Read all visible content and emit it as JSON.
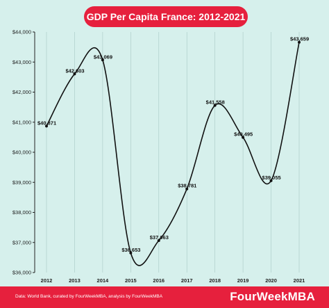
{
  "colors": {
    "brand": "#e6203d",
    "background": "#d6f0ec",
    "line": "#111111"
  },
  "footer": {
    "source": "Data: World Bank, curated by FourWeekMBA, analysis by FourWeekMBA",
    "brand": "FourWeekMBA"
  },
  "chart_data": {
    "type": "line",
    "title": "GDP Per Capita France: 2012-2021",
    "xlabel": "",
    "ylabel": "",
    "categories": [
      "2012",
      "2013",
      "2014",
      "2015",
      "2016",
      "2017",
      "2018",
      "2019",
      "2020",
      "2021"
    ],
    "values": [
      40871,
      42603,
      43069,
      36653,
      37063,
      38781,
      41558,
      40495,
      39055,
      43659
    ],
    "data_labels": [
      "$40,871",
      "$42,603",
      "$43,069",
      "$36,653",
      "$37,063",
      "$38,781",
      "$41,558",
      "$40,495",
      "$39,055",
      "$43,659"
    ],
    "ylim": [
      36000,
      44000
    ],
    "yticks": [
      36000,
      37000,
      38000,
      39000,
      40000,
      41000,
      42000,
      43000,
      44000
    ],
    "ytick_labels": [
      "$36,000",
      "$37,000",
      "$38,000",
      "$39,000",
      "$40,000",
      "$41,000",
      "$42,000",
      "$43,000",
      "$44,000"
    ],
    "grid": "vertical",
    "line_style": "smooth",
    "legend": "none"
  }
}
